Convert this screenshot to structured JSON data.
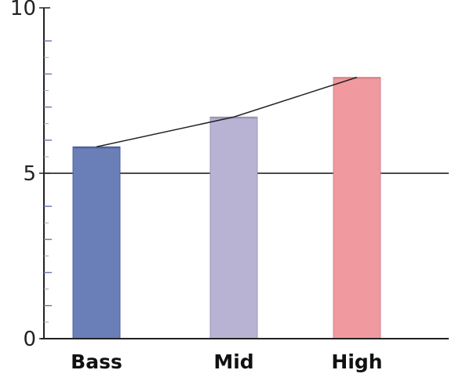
{
  "chart_data": {
    "type": "bar",
    "categories": [
      "Bass",
      "Mid",
      "High"
    ],
    "values": [
      5.8,
      6.7,
      7.9
    ],
    "bar_colors": [
      "#6a7fb8",
      "#b9b3d3",
      "#f0999f"
    ],
    "bar_edge_colors": [
      "#4f6399",
      "#9b95b8",
      "#d9848b"
    ],
    "ylim": [
      0,
      10
    ],
    "y_ticks": [
      0,
      5,
      10
    ],
    "y_tick_labels": [
      "0",
      "5",
      "10"
    ],
    "minor_tick_step": 1,
    "reference_line": 5,
    "trend_line": true,
    "title": "",
    "xlabel": "",
    "ylabel": "",
    "grid": false,
    "legend": "none"
  }
}
